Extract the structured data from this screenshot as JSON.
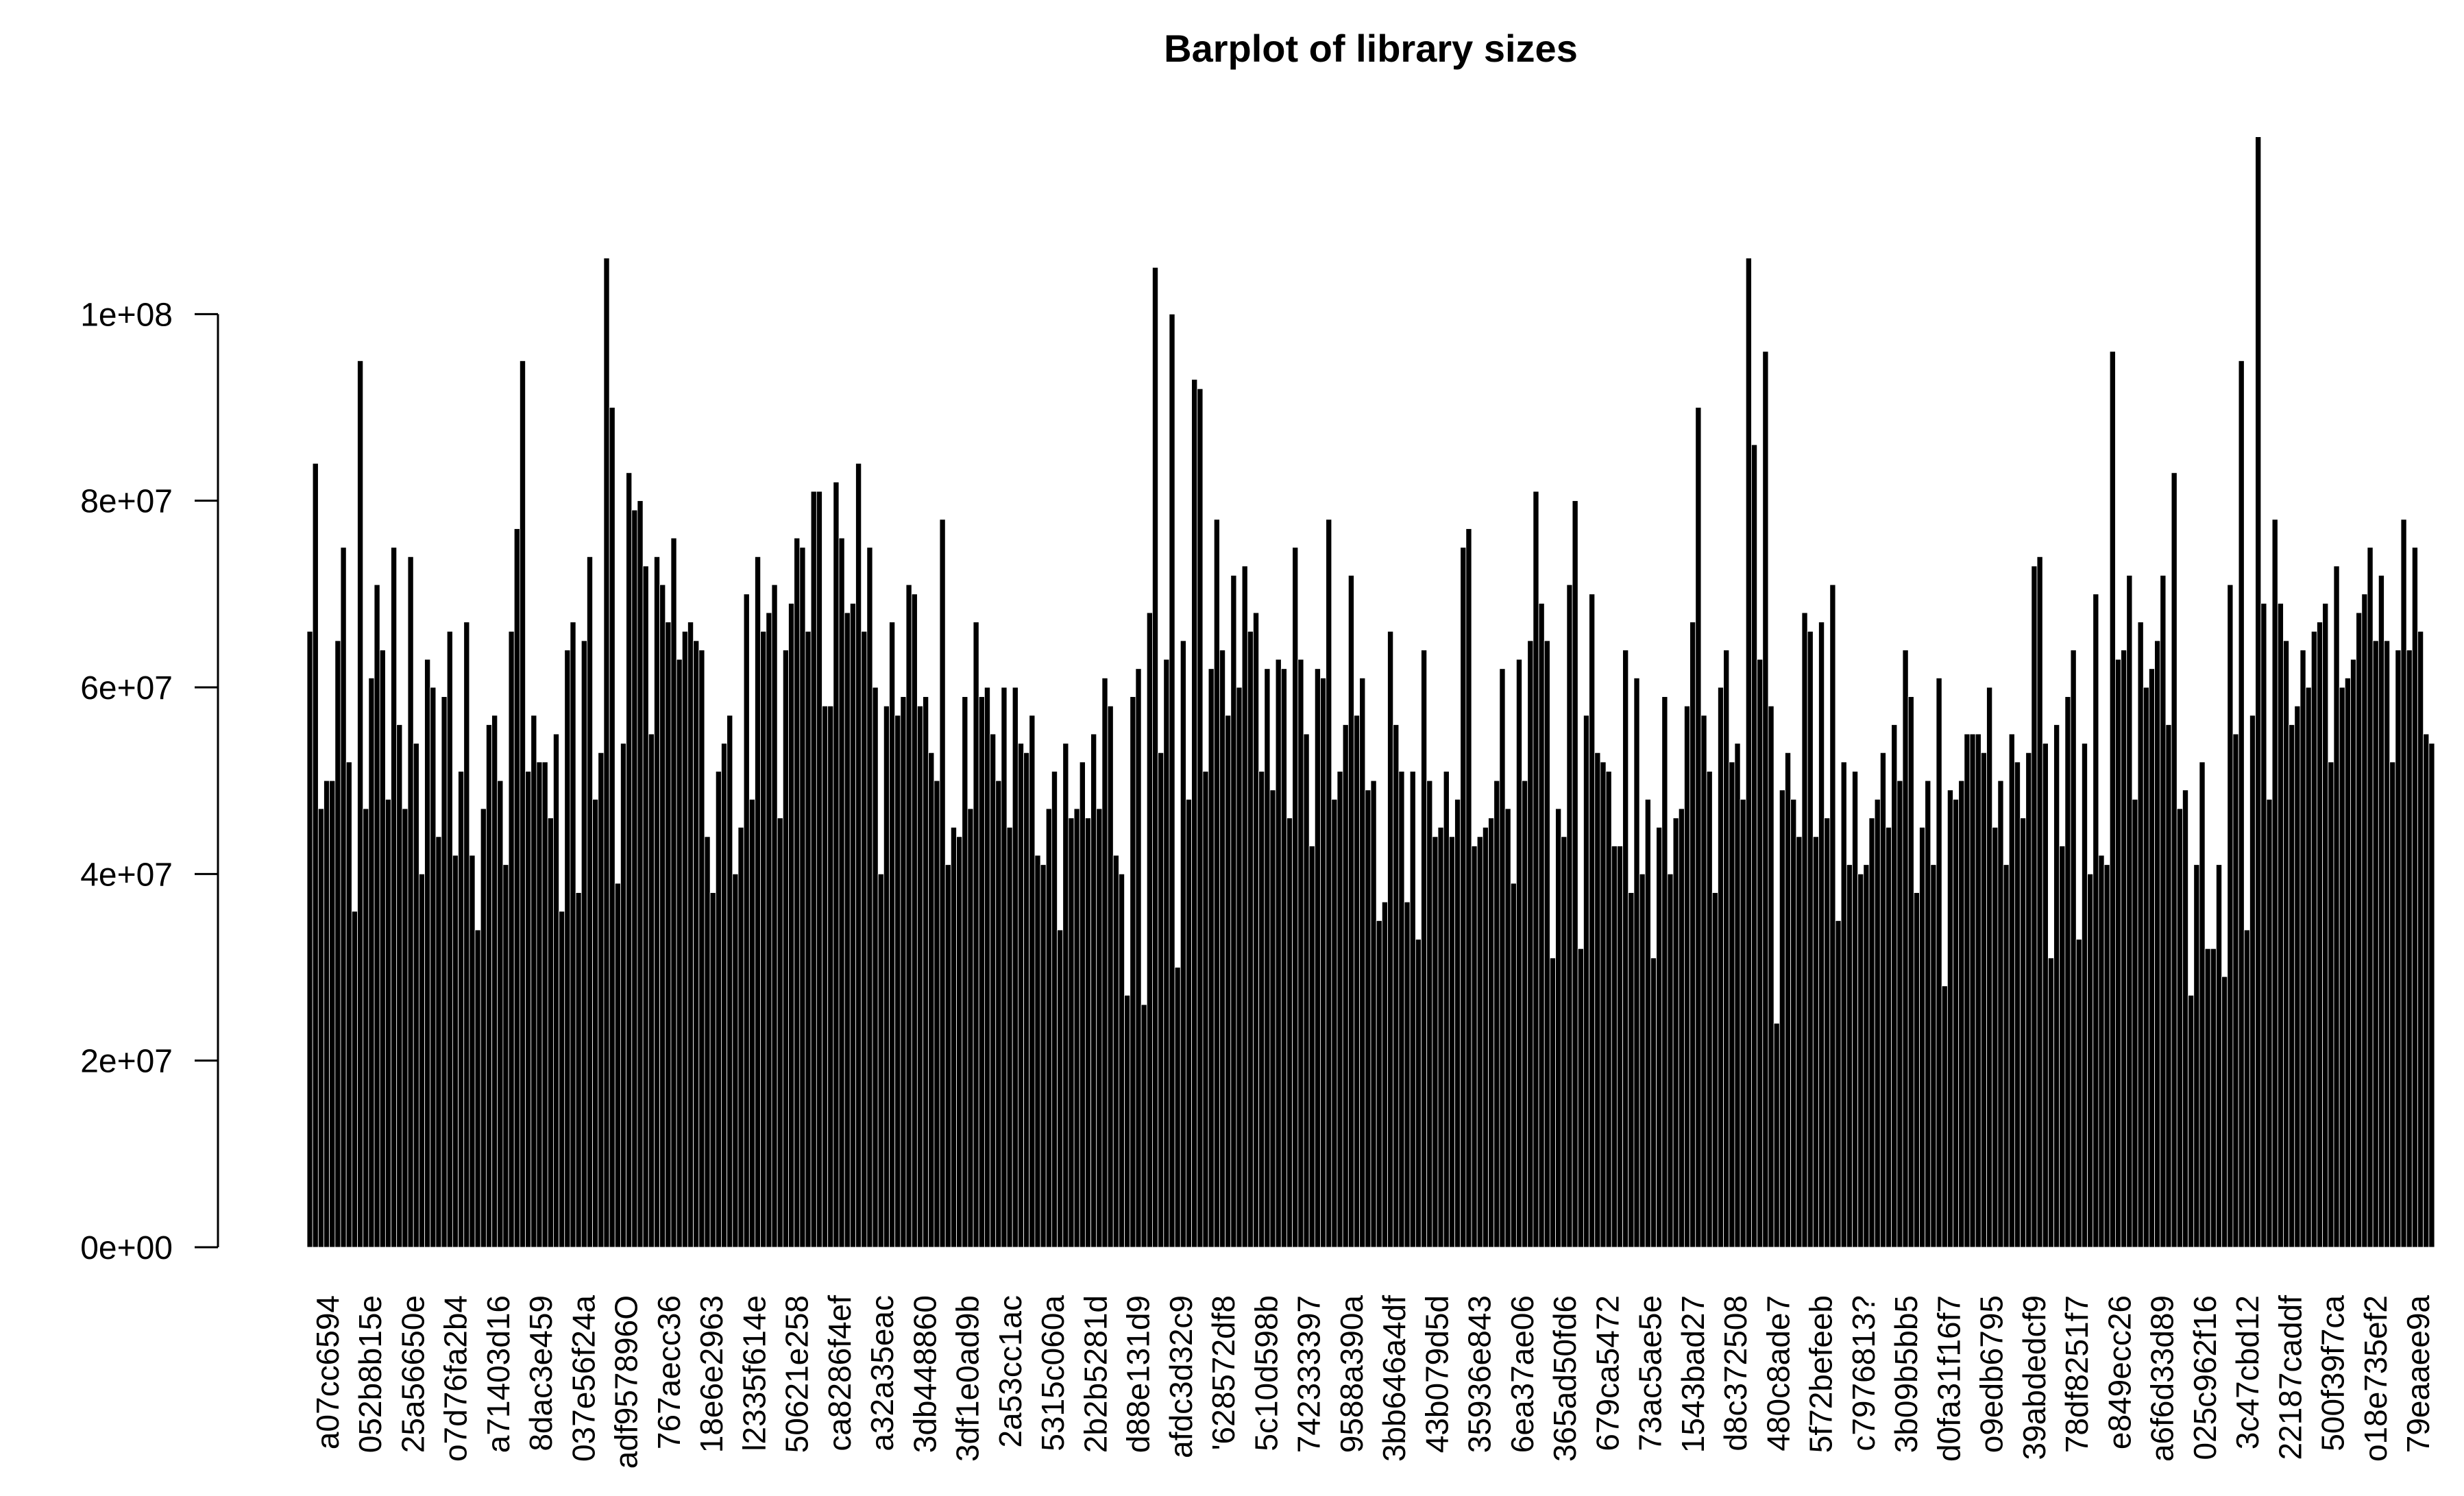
{
  "chart_data": {
    "type": "bar",
    "title": "Barplot of library sizes",
    "xlabel": "",
    "ylabel": "",
    "ylim": [
      0,
      120000000
    ],
    "y_ticks": [
      0,
      20000000,
      40000000,
      60000000,
      80000000,
      100000000
    ],
    "y_tick_labels": [
      "0e+00",
      "2e+07",
      "4e+07",
      "6e+07",
      "8e+07",
      "1e+08"
    ],
    "grid": false,
    "legend": "none",
    "bar_color": "#000000",
    "bar_border_color": "#ffffff",
    "category_labels": [
      "a07cc6594",
      "052b8b15e",
      "25a56650e",
      "o7d76fa2b4",
      "a71403d16",
      "8dac3e459",
      "037e56f24a",
      "adf957896O",
      "767aecc36",
      "18e6e2963",
      "l2335f614e",
      "50621e258",
      "ca8286f4ef",
      "a32a35eac",
      "3db448860",
      "3df1e0ad9b",
      "2a53cc1ac",
      "5315c060a",
      "2b2b5281d",
      "d88e131d9",
      "afdc3d32c9",
      "'628572df8",
      "5c10d598b",
      "742333397",
      "9588a390a",
      "3bb646a4df",
      "43b079d5d",
      "35936e843",
      "6ea37ae06",
      "365ad50fd6",
      "679ca5472",
      "73ac5ae5e",
      "1543bad27",
      "d8c372508",
      "480c8ade7",
      "5f72befeeb",
      "c7976813?",
      "3b09b5bb5",
      "d0fa31f16f7",
      "o9edb6795",
      "39abdedcf9",
      "78df8251f7",
      "e849ecc26",
      "a6f6d33d89",
      "025c962f16",
      "3c47cbd12",
      "22187caddf",
      "500f39f7ca",
      "o18e735ef2",
      "79eaaee9a"
    ],
    "values": [
      66000000,
      84000000,
      47000000,
      50000000,
      50000000,
      65000000,
      75000000,
      52000000,
      36000000,
      95000000,
      47000000,
      61000000,
      71000000,
      64000000,
      48000000,
      75000000,
      56000000,
      47000000,
      74000000,
      54000000,
      40000000,
      63000000,
      60000000,
      44000000,
      59000000,
      66000000,
      42000000,
      51000000,
      67000000,
      42000000,
      34000000,
      47000000,
      56000000,
      57000000,
      50000000,
      41000000,
      66000000,
      77000000,
      95000000,
      51000000,
      57000000,
      52000000,
      52000000,
      46000000,
      55000000,
      36000000,
      64000000,
      67000000,
      38000000,
      65000000,
      74000000,
      48000000,
      53000000,
      106000000,
      90000000,
      39000000,
      54000000,
      83000000,
      79000000,
      80000000,
      73000000,
      55000000,
      74000000,
      71000000,
      67000000,
      76000000,
      63000000,
      66000000,
      67000000,
      65000000,
      64000000,
      44000000,
      38000000,
      51000000,
      54000000,
      57000000,
      40000000,
      45000000,
      70000000,
      48000000,
      74000000,
      66000000,
      68000000,
      71000000,
      46000000,
      64000000,
      69000000,
      76000000,
      75000000,
      66000000,
      81000000,
      81000000,
      58000000,
      58000000,
      82000000,
      76000000,
      68000000,
      69000000,
      84000000,
      66000000,
      75000000,
      60000000,
      40000000,
      58000000,
      67000000,
      57000000,
      59000000,
      71000000,
      70000000,
      58000000,
      59000000,
      53000000,
      50000000,
      78000000,
      41000000,
      45000000,
      44000000,
      59000000,
      47000000,
      67000000,
      59000000,
      60000000,
      55000000,
      50000000,
      60000000,
      45000000,
      60000000,
      54000000,
      53000000,
      57000000,
      42000000,
      41000000,
      47000000,
      51000000,
      34000000,
      54000000,
      46000000,
      47000000,
      52000000,
      46000000,
      55000000,
      47000000,
      61000000,
      58000000,
      42000000,
      40000000,
      27000000,
      59000000,
      62000000,
      26000000,
      68000000,
      105000000,
      53000000,
      63000000,
      100000000,
      30000000,
      65000000,
      48000000,
      93000000,
      92000000,
      51000000,
      62000000,
      78000000,
      64000000,
      57000000,
      72000000,
      60000000,
      73000000,
      66000000,
      68000000,
      51000000,
      62000000,
      49000000,
      63000000,
      62000000,
      46000000,
      75000000,
      63000000,
      55000000,
      43000000,
      62000000,
      61000000,
      78000000,
      48000000,
      51000000,
      56000000,
      72000000,
      57000000,
      61000000,
      49000000,
      50000000,
      35000000,
      37000000,
      66000000,
      56000000,
      51000000,
      37000000,
      51000000,
      33000000,
      64000000,
      50000000,
      44000000,
      45000000,
      51000000,
      44000000,
      48000000,
      75000000,
      77000000,
      43000000,
      44000000,
      45000000,
      46000000,
      50000000,
      62000000,
      47000000,
      39000000,
      63000000,
      50000000,
      65000000,
      81000000,
      69000000,
      65000000,
      31000000,
      47000000,
      44000000,
      71000000,
      80000000,
      32000000,
      57000000,
      70000000,
      53000000,
      52000000,
      51000000,
      43000000,
      43000000,
      64000000,
      38000000,
      61000000,
      40000000,
      48000000,
      31000000,
      45000000,
      59000000,
      40000000,
      46000000,
      47000000,
      58000000,
      67000000,
      90000000,
      57000000,
      51000000,
      38000000,
      60000000,
      64000000,
      52000000,
      54000000,
      48000000,
      106000000,
      86000000,
      63000000,
      96000000,
      58000000,
      24000000,
      49000000,
      53000000,
      48000000,
      44000000,
      68000000,
      66000000,
      44000000,
      67000000,
      46000000,
      71000000,
      35000000,
      52000000,
      41000000,
      51000000,
      40000000,
      41000000,
      46000000,
      48000000,
      53000000,
      45000000,
      56000000,
      50000000,
      64000000,
      59000000,
      38000000,
      45000000,
      50000000,
      41000000,
      61000000,
      28000000,
      49000000,
      48000000,
      50000000,
      55000000,
      55000000,
      55000000,
      53000000,
      60000000,
      45000000,
      50000000,
      41000000,
      55000000,
      52000000,
      46000000,
      53000000,
      73000000,
      74000000,
      54000000,
      31000000,
      56000000,
      43000000,
      59000000,
      64000000,
      33000000,
      54000000,
      40000000,
      70000000,
      42000000,
      41000000,
      96000000,
      63000000,
      64000000,
      72000000,
      48000000,
      67000000,
      60000000,
      62000000,
      65000000,
      72000000,
      56000000,
      83000000,
      47000000,
      49000000,
      27000000,
      41000000,
      52000000,
      32000000,
      32000000,
      41000000,
      29000000,
      71000000,
      55000000,
      95000000,
      34000000,
      57000000,
      119000000,
      69000000,
      48000000,
      78000000,
      69000000,
      65000000,
      56000000,
      58000000,
      64000000,
      60000000,
      66000000,
      67000000,
      69000000,
      52000000,
      73000000,
      60000000,
      61000000,
      63000000,
      68000000,
      70000000,
      75000000,
      65000000,
      72000000,
      65000000,
      52000000,
      64000000,
      78000000,
      64000000,
      75000000,
      66000000,
      55000000,
      54000000
    ]
  }
}
